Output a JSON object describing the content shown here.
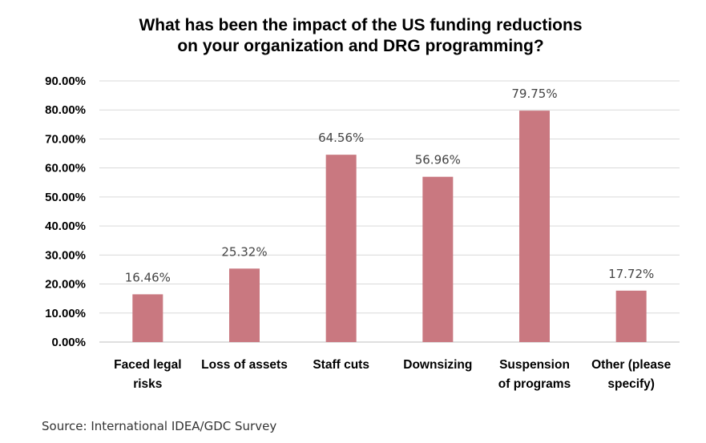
{
  "chart_data": {
    "type": "bar",
    "title": [
      "What has been the impact of the US funding reductions",
      "on your organization  and DRG programming?"
    ],
    "categories": [
      [
        "Faced legal",
        "risks"
      ],
      [
        "Loss of assets"
      ],
      [
        "Staff cuts"
      ],
      [
        "Downsizing"
      ],
      [
        "Suspension",
        "of programs"
      ],
      [
        "Other (please",
        "specify)"
      ]
    ],
    "values": [
      16.46,
      25.32,
      64.56,
      56.96,
      79.75,
      17.72
    ],
    "data_labels": [
      "16.46%",
      "25.32%",
      "64.56%",
      "56.96%",
      "79.75%",
      "17.72%"
    ],
    "ylim": [
      0,
      90
    ],
    "yticks": [
      0,
      10,
      20,
      30,
      40,
      50,
      60,
      70,
      80,
      90
    ],
    "ytick_labels": [
      "0.00%",
      "10.00%",
      "20.00%",
      "30.00%",
      "40.00%",
      "50.00%",
      "60.00%",
      "70.00%",
      "80.00%",
      "90.00%"
    ],
    "grid": true,
    "bar_color": "#c97880",
    "xlabel": "",
    "ylabel": ""
  },
  "source": "Source: International IDEA/GDC Survey"
}
